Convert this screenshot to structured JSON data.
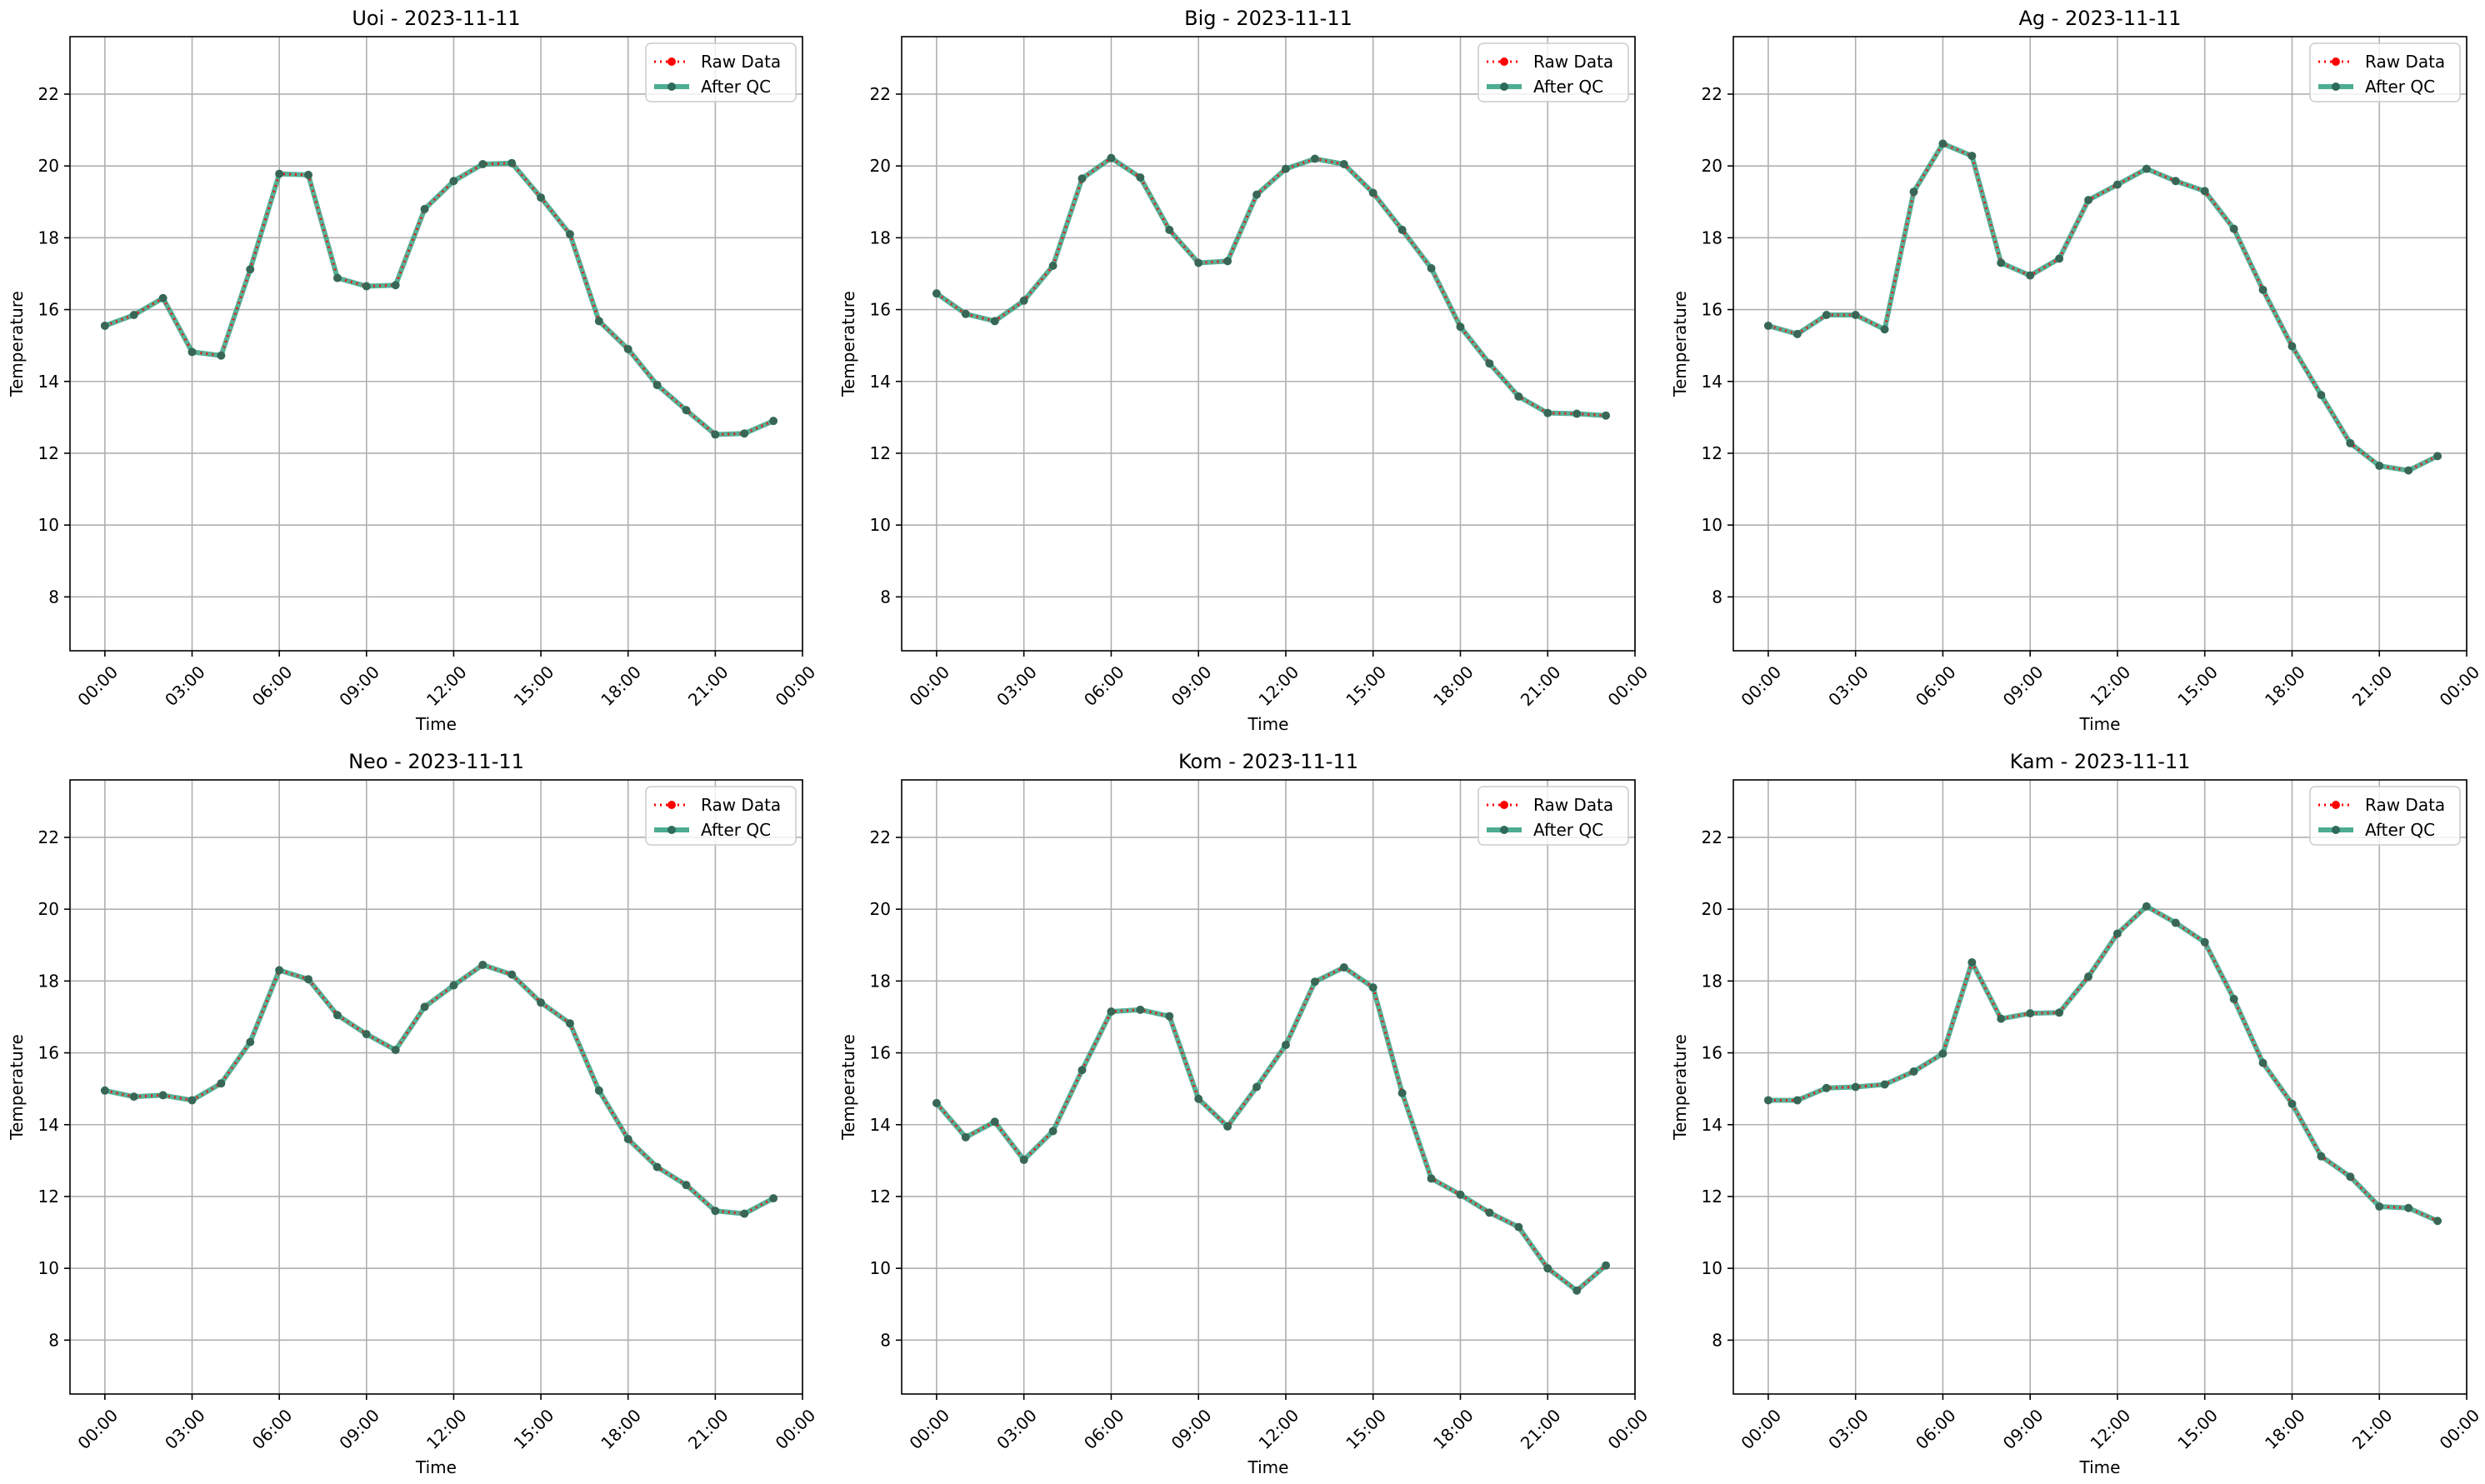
{
  "chart_data": [
    {
      "type": "line",
      "title": "Uoi - 2023-11-11",
      "xlabel": "Time",
      "ylabel": "Temperature",
      "x": [
        "00:00",
        "01:00",
        "02:00",
        "03:00",
        "04:00",
        "05:00",
        "06:00",
        "07:00",
        "08:00",
        "09:00",
        "10:00",
        "11:00",
        "12:00",
        "13:00",
        "14:00",
        "15:00",
        "16:00",
        "17:00",
        "18:00",
        "19:00",
        "20:00",
        "21:00",
        "22:00",
        "23:00"
      ],
      "xticks": [
        "00:00",
        "03:00",
        "06:00",
        "09:00",
        "12:00",
        "15:00",
        "18:00",
        "21:00",
        "00:00"
      ],
      "yticks": [
        8,
        10,
        12,
        14,
        16,
        18,
        20,
        22
      ],
      "ylim": [
        6.5,
        23.6
      ],
      "grid": true,
      "legend": "top-right",
      "series": [
        {
          "name": "Raw Data",
          "color": "#ff0000",
          "style": "dotted-markers",
          "values": [
            15.55,
            15.85,
            16.32,
            14.82,
            14.72,
            17.12,
            19.78,
            19.75,
            16.88,
            16.65,
            16.68,
            18.8,
            19.58,
            20.05,
            20.08,
            19.12,
            18.1,
            15.68,
            14.9,
            13.9,
            13.2,
            12.52,
            12.55,
            12.9
          ]
        },
        {
          "name": "After QC",
          "color": "#2e9e7e",
          "style": "solid-markers",
          "values": [
            15.55,
            15.85,
            16.32,
            14.82,
            14.72,
            17.12,
            19.78,
            19.75,
            16.88,
            16.65,
            16.68,
            18.8,
            19.58,
            20.05,
            20.08,
            19.12,
            18.1,
            15.68,
            14.9,
            13.9,
            13.2,
            12.52,
            12.55,
            12.9
          ]
        }
      ]
    },
    {
      "type": "line",
      "title": "Big - 2023-11-11",
      "xlabel": "Time",
      "ylabel": "Temperature",
      "x": [
        "00:00",
        "01:00",
        "02:00",
        "03:00",
        "04:00",
        "05:00",
        "06:00",
        "07:00",
        "08:00",
        "09:00",
        "10:00",
        "11:00",
        "12:00",
        "13:00",
        "14:00",
        "15:00",
        "16:00",
        "17:00",
        "18:00",
        "19:00",
        "20:00",
        "21:00",
        "22:00",
        "23:00"
      ],
      "xticks": [
        "00:00",
        "03:00",
        "06:00",
        "09:00",
        "12:00",
        "15:00",
        "18:00",
        "21:00",
        "00:00"
      ],
      "yticks": [
        8,
        10,
        12,
        14,
        16,
        18,
        20,
        22
      ],
      "ylim": [
        6.5,
        23.6
      ],
      "grid": true,
      "legend": "top-right",
      "series": [
        {
          "name": "Raw Data",
          "color": "#ff0000",
          "style": "dotted-markers",
          "values": [
            16.45,
            15.88,
            15.68,
            16.25,
            17.22,
            19.65,
            20.22,
            19.68,
            18.22,
            17.3,
            17.35,
            19.2,
            19.92,
            20.2,
            20.05,
            19.25,
            18.22,
            17.15,
            15.52,
            14.5,
            13.58,
            13.12,
            13.1,
            13.05
          ]
        },
        {
          "name": "After QC",
          "color": "#2e9e7e",
          "style": "solid-markers",
          "values": [
            16.45,
            15.88,
            15.68,
            16.25,
            17.22,
            19.65,
            20.22,
            19.68,
            18.22,
            17.3,
            17.35,
            19.2,
            19.92,
            20.2,
            20.05,
            19.25,
            18.22,
            17.15,
            15.52,
            14.5,
            13.58,
            13.12,
            13.1,
            13.05
          ]
        }
      ]
    },
    {
      "type": "line",
      "title": "Ag - 2023-11-11",
      "xlabel": "Time",
      "ylabel": "Temperature",
      "x": [
        "00:00",
        "01:00",
        "02:00",
        "03:00",
        "04:00",
        "05:00",
        "06:00",
        "07:00",
        "08:00",
        "09:00",
        "10:00",
        "11:00",
        "12:00",
        "13:00",
        "14:00",
        "15:00",
        "16:00",
        "17:00",
        "18:00",
        "19:00",
        "20:00",
        "21:00",
        "22:00",
        "23:00"
      ],
      "xticks": [
        "00:00",
        "03:00",
        "06:00",
        "09:00",
        "12:00",
        "15:00",
        "18:00",
        "21:00",
        "00:00"
      ],
      "yticks": [
        8,
        10,
        12,
        14,
        16,
        18,
        20,
        22
      ],
      "ylim": [
        6.5,
        23.6
      ],
      "grid": true,
      "legend": "top-right",
      "series": [
        {
          "name": "Raw Data",
          "color": "#ff0000",
          "style": "dotted-markers",
          "values": [
            15.55,
            15.32,
            15.85,
            15.85,
            15.45,
            19.28,
            20.62,
            20.28,
            17.3,
            16.95,
            17.42,
            19.05,
            19.48,
            19.92,
            19.58,
            19.3,
            18.25,
            16.55,
            14.98,
            13.62,
            12.28,
            11.65,
            11.52,
            11.92
          ]
        },
        {
          "name": "After QC",
          "color": "#2e9e7e",
          "style": "solid-markers",
          "values": [
            15.55,
            15.32,
            15.85,
            15.85,
            15.45,
            19.28,
            20.62,
            20.28,
            17.3,
            16.95,
            17.42,
            19.05,
            19.48,
            19.92,
            19.58,
            19.3,
            18.25,
            16.55,
            14.98,
            13.62,
            12.28,
            11.65,
            11.52,
            11.92
          ]
        }
      ]
    },
    {
      "type": "line",
      "title": "Neo - 2023-11-11",
      "xlabel": "Time",
      "ylabel": "Temperature",
      "x": [
        "00:00",
        "01:00",
        "02:00",
        "03:00",
        "04:00",
        "05:00",
        "06:00",
        "07:00",
        "08:00",
        "09:00",
        "10:00",
        "11:00",
        "12:00",
        "13:00",
        "14:00",
        "15:00",
        "16:00",
        "17:00",
        "18:00",
        "19:00",
        "20:00",
        "21:00",
        "22:00",
        "23:00"
      ],
      "xticks": [
        "00:00",
        "03:00",
        "06:00",
        "09:00",
        "12:00",
        "15:00",
        "18:00",
        "21:00",
        "00:00"
      ],
      "yticks": [
        8,
        10,
        12,
        14,
        16,
        18,
        20,
        22
      ],
      "ylim": [
        6.5,
        23.6
      ],
      "grid": true,
      "legend": "top-right",
      "series": [
        {
          "name": "Raw Data",
          "color": "#ff0000",
          "style": "dotted-markers",
          "values": [
            14.95,
            14.78,
            14.82,
            14.68,
            15.15,
            16.3,
            18.3,
            18.05,
            17.05,
            16.52,
            16.08,
            17.28,
            17.88,
            18.45,
            18.18,
            17.4,
            16.82,
            14.95,
            13.6,
            12.82,
            12.32,
            11.6,
            11.52,
            11.95
          ]
        },
        {
          "name": "After QC",
          "color": "#2e9e7e",
          "style": "solid-markers",
          "values": [
            14.95,
            14.78,
            14.82,
            14.68,
            15.15,
            16.3,
            18.3,
            18.05,
            17.05,
            16.52,
            16.08,
            17.28,
            17.88,
            18.45,
            18.18,
            17.4,
            16.82,
            14.95,
            13.6,
            12.82,
            12.32,
            11.6,
            11.52,
            11.95
          ]
        }
      ]
    },
    {
      "type": "line",
      "title": "Kom - 2023-11-11",
      "xlabel": "Time",
      "ylabel": "Temperature",
      "x": [
        "00:00",
        "01:00",
        "02:00",
        "03:00",
        "04:00",
        "05:00",
        "06:00",
        "07:00",
        "08:00",
        "09:00",
        "10:00",
        "11:00",
        "12:00",
        "13:00",
        "14:00",
        "15:00",
        "16:00",
        "17:00",
        "18:00",
        "19:00",
        "20:00",
        "21:00",
        "22:00",
        "23:00"
      ],
      "xticks": [
        "00:00",
        "03:00",
        "06:00",
        "09:00",
        "12:00",
        "15:00",
        "18:00",
        "21:00",
        "00:00"
      ],
      "yticks": [
        8,
        10,
        12,
        14,
        16,
        18,
        20,
        22
      ],
      "ylim": [
        6.5,
        23.6
      ],
      "grid": true,
      "legend": "top-right",
      "series": [
        {
          "name": "Raw Data",
          "color": "#ff0000",
          "style": "dotted-markers",
          "values": [
            14.6,
            13.65,
            14.08,
            13.02,
            13.82,
            15.52,
            17.15,
            17.2,
            17.02,
            14.72,
            13.95,
            15.05,
            16.22,
            17.98,
            18.38,
            17.82,
            14.88,
            12.5,
            12.05,
            11.55,
            11.15,
            10.0,
            9.38,
            10.08
          ]
        },
        {
          "name": "After QC",
          "color": "#2e9e7e",
          "style": "solid-markers",
          "values": [
            14.6,
            13.65,
            14.08,
            13.02,
            13.82,
            15.52,
            17.15,
            17.2,
            17.02,
            14.72,
            13.95,
            15.05,
            16.22,
            17.98,
            18.38,
            17.82,
            14.88,
            12.5,
            12.05,
            11.55,
            11.15,
            10.0,
            9.38,
            10.08
          ]
        }
      ]
    },
    {
      "type": "line",
      "title": "Kam - 2023-11-11",
      "xlabel": "Time",
      "ylabel": "Temperature",
      "x": [
        "00:00",
        "01:00",
        "02:00",
        "03:00",
        "04:00",
        "05:00",
        "06:00",
        "07:00",
        "08:00",
        "09:00",
        "10:00",
        "11:00",
        "12:00",
        "13:00",
        "14:00",
        "15:00",
        "16:00",
        "17:00",
        "18:00",
        "19:00",
        "20:00",
        "21:00",
        "22:00",
        "23:00"
      ],
      "xticks": [
        "00:00",
        "03:00",
        "06:00",
        "09:00",
        "12:00",
        "15:00",
        "18:00",
        "21:00",
        "00:00"
      ],
      "yticks": [
        8,
        10,
        12,
        14,
        16,
        18,
        20,
        22
      ],
      "ylim": [
        6.5,
        23.6
      ],
      "grid": true,
      "legend": "top-right",
      "series": [
        {
          "name": "Raw Data",
          "color": "#ff0000",
          "style": "dotted-markers",
          "values": [
            14.68,
            14.68,
            15.02,
            15.05,
            15.12,
            15.48,
            15.98,
            18.52,
            16.95,
            17.1,
            17.12,
            18.12,
            19.32,
            20.08,
            19.62,
            19.08,
            17.5,
            15.72,
            14.58,
            13.12,
            12.55,
            11.72,
            11.68,
            11.32
          ]
        },
        {
          "name": "After QC",
          "color": "#2e9e7e",
          "style": "solid-markers",
          "values": [
            14.68,
            14.68,
            15.02,
            15.05,
            15.12,
            15.48,
            15.98,
            18.52,
            16.95,
            17.1,
            17.12,
            18.12,
            19.32,
            20.08,
            19.62,
            19.08,
            17.5,
            15.72,
            14.58,
            13.12,
            12.55,
            11.72,
            11.68,
            11.32
          ]
        }
      ]
    }
  ]
}
